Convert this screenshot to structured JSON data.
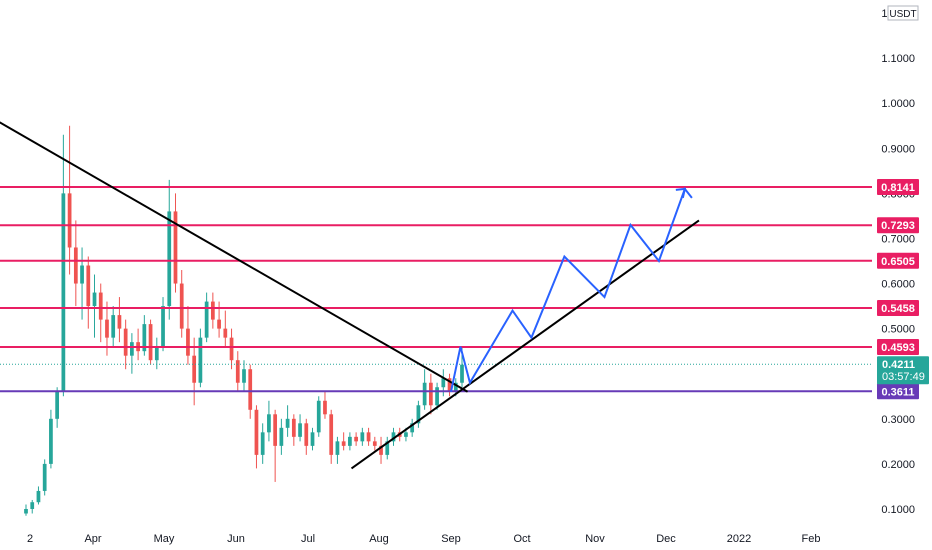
{
  "chart_data": {
    "type": "candlestick",
    "unit": "USDT",
    "y_ticks": [
      "0.1000",
      "0.2000",
      "0.3000",
      "0.4000",
      "0.5000",
      "0.6000",
      "0.7000",
      "0.8000",
      "0.9000",
      "1.0000",
      "1.1000",
      "1.2000"
    ],
    "x_ticks": [
      "2",
      "Apr",
      "May",
      "Jun",
      "Jul",
      "Aug",
      "Sep",
      "Oct",
      "Nov",
      "Dec",
      "2022",
      "Feb"
    ],
    "ylim": [
      0.08,
      1.22
    ],
    "horizontal_levels": [
      {
        "value": 0.8141,
        "label": "0.8141",
        "color": "#e91e63"
      },
      {
        "value": 0.7293,
        "label": "0.7293",
        "color": "#e91e63"
      },
      {
        "value": 0.6505,
        "label": "0.6505",
        "color": "#e91e63"
      },
      {
        "value": 0.5458,
        "label": "0.5458",
        "color": "#e91e63"
      },
      {
        "value": 0.4593,
        "label": "0.4593",
        "color": "#e91e63"
      },
      {
        "value": 0.3611,
        "label": "0.3611",
        "color": "#673ab7"
      }
    ],
    "current_price": {
      "value": 0.4211,
      "label": "0.4211",
      "countdown": "03:57:49",
      "color": "#26a69a"
    },
    "candles_ohlc": [
      [
        0.09,
        0.11,
        0.085,
        0.1
      ],
      [
        0.1,
        0.12,
        0.09,
        0.115
      ],
      [
        0.115,
        0.15,
        0.11,
        0.14
      ],
      [
        0.14,
        0.21,
        0.13,
        0.2
      ],
      [
        0.2,
        0.32,
        0.19,
        0.3
      ],
      [
        0.3,
        0.37,
        0.28,
        0.36
      ],
      [
        0.36,
        0.93,
        0.35,
        0.8
      ],
      [
        0.8,
        0.95,
        0.62,
        0.68
      ],
      [
        0.68,
        0.74,
        0.55,
        0.6
      ],
      [
        0.6,
        0.68,
        0.52,
        0.64
      ],
      [
        0.64,
        0.66,
        0.5,
        0.55
      ],
      [
        0.55,
        0.62,
        0.48,
        0.58
      ],
      [
        0.58,
        0.6,
        0.47,
        0.52
      ],
      [
        0.52,
        0.56,
        0.44,
        0.48
      ],
      [
        0.48,
        0.55,
        0.46,
        0.53
      ],
      [
        0.53,
        0.57,
        0.47,
        0.5
      ],
      [
        0.5,
        0.52,
        0.41,
        0.44
      ],
      [
        0.44,
        0.49,
        0.4,
        0.47
      ],
      [
        0.47,
        0.5,
        0.43,
        0.45
      ],
      [
        0.45,
        0.53,
        0.44,
        0.51
      ],
      [
        0.51,
        0.52,
        0.42,
        0.43
      ],
      [
        0.43,
        0.48,
        0.41,
        0.46
      ],
      [
        0.46,
        0.57,
        0.45,
        0.55
      ],
      [
        0.55,
        0.83,
        0.52,
        0.76
      ],
      [
        0.76,
        0.8,
        0.58,
        0.6
      ],
      [
        0.6,
        0.63,
        0.48,
        0.5
      ],
      [
        0.5,
        0.55,
        0.42,
        0.44
      ],
      [
        0.44,
        0.48,
        0.33,
        0.38
      ],
      [
        0.38,
        0.5,
        0.37,
        0.48
      ],
      [
        0.48,
        0.58,
        0.47,
        0.56
      ],
      [
        0.56,
        0.58,
        0.5,
        0.52
      ],
      [
        0.52,
        0.56,
        0.48,
        0.5
      ],
      [
        0.5,
        0.54,
        0.46,
        0.48
      ],
      [
        0.48,
        0.5,
        0.41,
        0.43
      ],
      [
        0.43,
        0.45,
        0.36,
        0.38
      ],
      [
        0.38,
        0.43,
        0.36,
        0.41
      ],
      [
        0.41,
        0.42,
        0.3,
        0.32
      ],
      [
        0.32,
        0.33,
        0.19,
        0.22
      ],
      [
        0.22,
        0.29,
        0.2,
        0.27
      ],
      [
        0.27,
        0.34,
        0.25,
        0.31
      ],
      [
        0.31,
        0.32,
        0.16,
        0.24
      ],
      [
        0.24,
        0.3,
        0.22,
        0.28
      ],
      [
        0.28,
        0.33,
        0.26,
        0.3
      ],
      [
        0.3,
        0.31,
        0.24,
        0.26
      ],
      [
        0.26,
        0.31,
        0.25,
        0.29
      ],
      [
        0.29,
        0.3,
        0.22,
        0.24
      ],
      [
        0.24,
        0.28,
        0.23,
        0.27
      ],
      [
        0.27,
        0.35,
        0.26,
        0.34
      ],
      [
        0.34,
        0.36,
        0.3,
        0.31
      ],
      [
        0.31,
        0.32,
        0.2,
        0.22
      ],
      [
        0.22,
        0.26,
        0.2,
        0.25
      ],
      [
        0.25,
        0.27,
        0.23,
        0.24
      ],
      [
        0.24,
        0.27,
        0.23,
        0.26
      ],
      [
        0.26,
        0.27,
        0.24,
        0.25
      ],
      [
        0.25,
        0.28,
        0.24,
        0.27
      ],
      [
        0.27,
        0.28,
        0.24,
        0.25
      ],
      [
        0.25,
        0.26,
        0.23,
        0.24
      ],
      [
        0.24,
        0.26,
        0.2,
        0.22
      ],
      [
        0.22,
        0.26,
        0.21,
        0.25
      ],
      [
        0.25,
        0.28,
        0.24,
        0.27
      ],
      [
        0.27,
        0.28,
        0.25,
        0.26
      ],
      [
        0.26,
        0.28,
        0.25,
        0.27
      ],
      [
        0.27,
        0.3,
        0.26,
        0.29
      ],
      [
        0.29,
        0.34,
        0.28,
        0.33
      ],
      [
        0.33,
        0.41,
        0.32,
        0.38
      ],
      [
        0.38,
        0.4,
        0.31,
        0.33
      ],
      [
        0.33,
        0.38,
        0.32,
        0.37
      ],
      [
        0.37,
        0.41,
        0.35,
        0.39
      ],
      [
        0.39,
        0.4,
        0.35,
        0.36
      ],
      [
        0.36,
        0.39,
        0.35,
        0.38
      ],
      [
        0.38,
        0.46,
        0.37,
        0.42
      ]
    ],
    "drawings": {
      "downtrend_line": {
        "from": {
          "x": "2021-01-27",
          "y": 1.01
        },
        "to": {
          "x": "2021-09-08",
          "y": 0.36
        },
        "color": "#000000"
      },
      "uptrend_line": {
        "from": {
          "x": "2021-07-20",
          "y": 0.19
        },
        "to": {
          "x": "2021-12-15",
          "y": 0.74
        },
        "color": "#000000"
      },
      "projection_path": {
        "color": "#2962ff",
        "points": [
          {
            "x": "2021-09-01",
            "y": 0.36
          },
          {
            "x": "2021-09-05",
            "y": 0.46
          },
          {
            "x": "2021-09-09",
            "y": 0.38
          },
          {
            "x": "2021-09-27",
            "y": 0.54
          },
          {
            "x": "2021-10-05",
            "y": 0.48
          },
          {
            "x": "2021-10-19",
            "y": 0.66
          },
          {
            "x": "2021-11-05",
            "y": 0.57
          },
          {
            "x": "2021-11-16",
            "y": 0.73
          },
          {
            "x": "2021-11-28",
            "y": 0.65
          },
          {
            "x": "2021-12-09",
            "y": 0.81
          },
          {
            "x": "2021-12-12",
            "y": 0.79
          }
        ]
      }
    }
  }
}
